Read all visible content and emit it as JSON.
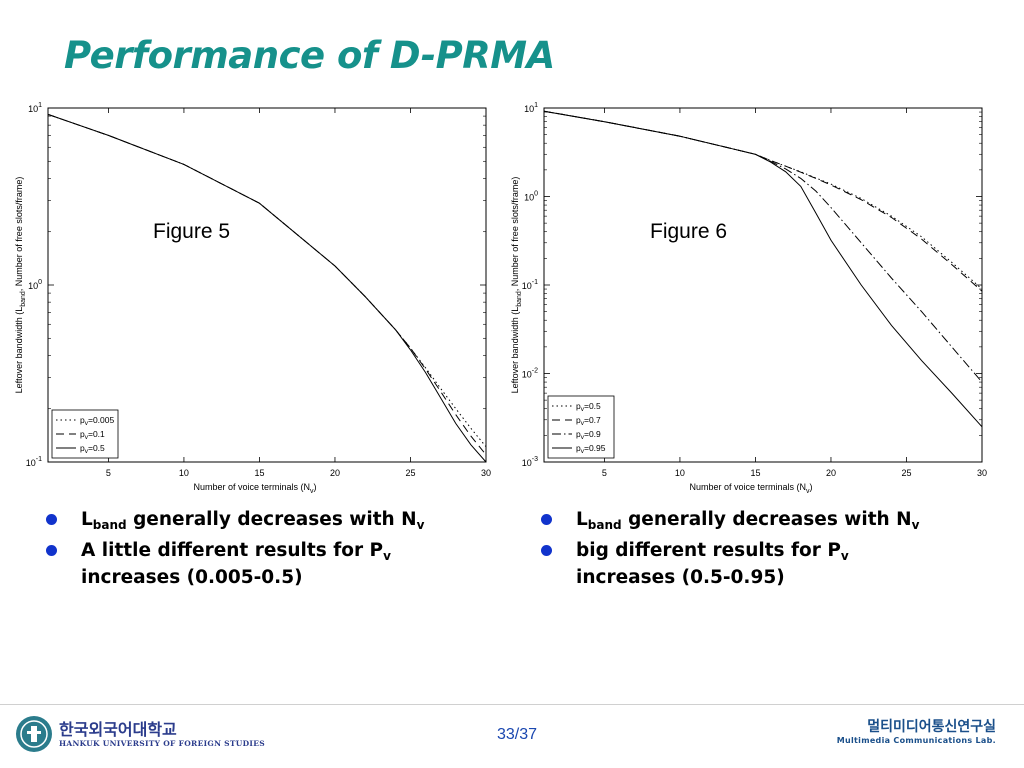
{
  "slide": {
    "title": "Performance of D-PRMA",
    "page_number": "33/37",
    "colors": {
      "title": "#16918b",
      "bullet": "#1133cc",
      "footer_text": "#1a47b0"
    }
  },
  "chart_data": [
    {
      "type": "line",
      "annotation": "Figure 5",
      "xlabel": "Number of voice terminals (N_v)",
      "ylabel": "Leftover bandwidth (L_band, Number of free slots/frame)",
      "xlim": [
        1,
        30
      ],
      "ylim": [
        0.1,
        10
      ],
      "yscale": "log",
      "xticks": [
        5,
        10,
        15,
        20,
        25,
        30
      ],
      "yticks": [
        {
          "value": 0.1,
          "exp": "-1"
        },
        {
          "value": 1,
          "exp": "0"
        },
        {
          "value": 10,
          "exp": "1"
        }
      ],
      "grid": false,
      "legend_position": "bottom-left",
      "series": [
        {
          "name": "p_v=0.005",
          "style": "dotted",
          "x": [
            1,
            5,
            10,
            15,
            20,
            22,
            24,
            25,
            26,
            27,
            28,
            29,
            30
          ],
          "y": [
            9.2,
            7.0,
            4.8,
            2.9,
            1.28,
            0.86,
            0.56,
            0.44,
            0.34,
            0.26,
            0.2,
            0.155,
            0.122
          ]
        },
        {
          "name": "p_v=0.1",
          "style": "dashed",
          "x": [
            1,
            5,
            10,
            15,
            20,
            22,
            24,
            25,
            26,
            27,
            28,
            29,
            30
          ],
          "y": [
            9.2,
            7.0,
            4.8,
            2.9,
            1.28,
            0.86,
            0.56,
            0.44,
            0.335,
            0.25,
            0.185,
            0.14,
            0.11
          ]
        },
        {
          "name": "p_v=0.5",
          "style": "solid",
          "x": [
            1,
            5,
            10,
            15,
            20,
            22,
            24,
            25,
            26,
            27,
            28,
            29,
            30
          ],
          "y": [
            9.2,
            7.0,
            4.8,
            2.9,
            1.28,
            0.86,
            0.56,
            0.43,
            0.32,
            0.23,
            0.165,
            0.125,
            0.1
          ]
        }
      ]
    },
    {
      "type": "line",
      "annotation": "Figure 6",
      "xlabel": "Number of voice terminals (N_v)",
      "ylabel": "Leftover bandwidth (L_band, Number of free slots/frame)",
      "xlim": [
        1,
        30
      ],
      "ylim": [
        0.001,
        10
      ],
      "yscale": "log",
      "xticks": [
        5,
        10,
        15,
        20,
        25,
        30
      ],
      "yticks": [
        {
          "value": 0.001,
          "exp": "-3"
        },
        {
          "value": 0.01,
          "exp": "-2"
        },
        {
          "value": 0.1,
          "exp": "-1"
        },
        {
          "value": 1,
          "exp": "0"
        },
        {
          "value": 10,
          "exp": "1"
        }
      ],
      "grid": false,
      "legend_position": "bottom-left",
      "series": [
        {
          "name": "p_v=0.5",
          "style": "dotted",
          "x": [
            1,
            5,
            10,
            15,
            16,
            17,
            18,
            19,
            20,
            22,
            24,
            26,
            28,
            30
          ],
          "y": [
            9.2,
            7.0,
            4.8,
            3.0,
            2.55,
            2.2,
            1.9,
            1.62,
            1.38,
            0.95,
            0.6,
            0.35,
            0.18,
            0.09
          ]
        },
        {
          "name": "p_v=0.7",
          "style": "dashed",
          "x": [
            1,
            5,
            10,
            15,
            16,
            17,
            18,
            19,
            20,
            22,
            24,
            26,
            28,
            30
          ],
          "y": [
            9.2,
            7.0,
            4.8,
            3.0,
            2.55,
            2.2,
            1.88,
            1.6,
            1.35,
            0.92,
            0.58,
            0.33,
            0.17,
            0.085
          ]
        },
        {
          "name": "p_v=0.9",
          "style": "dashdot",
          "x": [
            1,
            5,
            10,
            15,
            16,
            17,
            18,
            19,
            20,
            22,
            24,
            26,
            28,
            30
          ],
          "y": [
            9.2,
            7.0,
            4.8,
            3.0,
            2.5,
            2.05,
            1.6,
            1.15,
            0.75,
            0.3,
            0.12,
            0.05,
            0.02,
            0.008
          ]
        },
        {
          "name": "p_v=0.95",
          "style": "solid",
          "x": [
            1,
            5,
            10,
            15,
            16,
            17,
            18,
            19,
            20,
            22,
            24,
            26,
            28,
            30
          ],
          "y": [
            9.2,
            7.0,
            4.8,
            3.0,
            2.45,
            1.9,
            1.3,
            0.65,
            0.32,
            0.1,
            0.035,
            0.014,
            0.006,
            0.0025
          ]
        }
      ]
    }
  ],
  "bullets_left": {
    "b1": {
      "l": "L",
      "band": "band",
      "rest": " generally decreases with N",
      "v": "v"
    },
    "b2": {
      "text": "A little different results for P",
      "v": "v",
      "rest": "increases (0.005-0.5)"
    }
  },
  "bullets_right": {
    "b1": {
      "l": "L",
      "band": "band",
      "rest": " generally decreases with N",
      "v": "v"
    },
    "b2": {
      "text": "big different results for P",
      "v": "v",
      "rest": "increases (0.5-0.95)"
    }
  },
  "footer": {
    "university_korean": "한국외국어대학교",
    "university_english": "HANKUK UNIVERSITY OF FOREIGN STUDIES",
    "lab_korean": "멀티미디어통신연구실",
    "lab_english": "Multimedia Communications Lab."
  }
}
